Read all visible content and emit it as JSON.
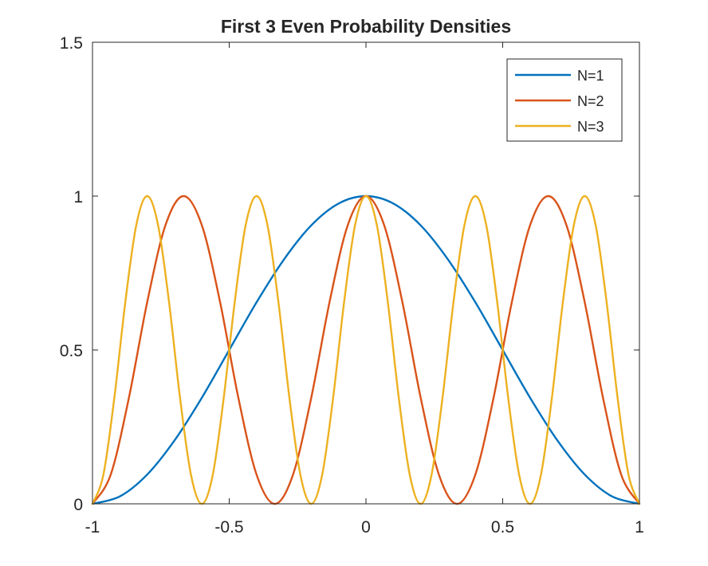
{
  "chart_data": {
    "type": "line",
    "title": "First 3 Even Probability Densities",
    "xlabel": "",
    "ylabel": "",
    "xlim": [
      -1,
      1
    ],
    "ylim": [
      0,
      1.5
    ],
    "x_ticks": [
      -1,
      -0.5,
      0,
      0.5,
      1
    ],
    "x_tick_labels": [
      "-1",
      "-0.5",
      "0",
      "0.5",
      "1"
    ],
    "y_ticks": [
      0,
      0.5,
      1,
      1.5
    ],
    "y_tick_labels": [
      "0",
      "0.5",
      "1",
      "1.5"
    ],
    "grid": false,
    "legend_position": "top-right",
    "series": [
      {
        "name": "N=1",
        "color": "#0072BD",
        "x": [
          -1.0,
          -0.9,
          -0.8,
          -0.7,
          -0.6,
          -0.5,
          -0.4,
          -0.3,
          -0.2,
          -0.1,
          0.0,
          0.1,
          0.2,
          0.3,
          0.4,
          0.5,
          0.6,
          0.7,
          0.8,
          0.9,
          1.0
        ],
        "y": [
          0.0,
          0.024,
          0.095,
          0.206,
          0.345,
          0.5,
          0.655,
          0.794,
          0.905,
          0.976,
          1.0,
          0.976,
          0.905,
          0.794,
          0.655,
          0.5,
          0.345,
          0.206,
          0.095,
          0.024,
          0.0
        ]
      },
      {
        "name": "N=2",
        "color": "#D95319",
        "x": [
          -1.0,
          -0.9333,
          -0.8667,
          -0.8,
          -0.7333,
          -0.6667,
          -0.6,
          -0.5333,
          -0.4667,
          -0.4,
          -0.3333,
          -0.2667,
          -0.2,
          -0.1333,
          -0.0667,
          0.0,
          0.0667,
          0.1333,
          0.2,
          0.2667,
          0.3333,
          0.4,
          0.4667,
          0.5333,
          0.6,
          0.6667,
          0.7333,
          0.8,
          0.8667,
          0.9333,
          1.0
        ],
        "y": [
          0.0,
          0.095,
          0.345,
          0.655,
          0.905,
          1.0,
          0.905,
          0.655,
          0.345,
          0.095,
          0.0,
          0.095,
          0.345,
          0.655,
          0.905,
          1.0,
          0.905,
          0.655,
          0.345,
          0.095,
          0.0,
          0.095,
          0.345,
          0.655,
          0.905,
          1.0,
          0.905,
          0.655,
          0.345,
          0.095,
          0.0
        ]
      },
      {
        "name": "N=3",
        "color": "#EDB120",
        "x": [
          -1.0,
          -0.96,
          -0.92,
          -0.88,
          -0.84,
          -0.8,
          -0.76,
          -0.72,
          -0.68,
          -0.64,
          -0.6,
          -0.56,
          -0.52,
          -0.48,
          -0.44,
          -0.4,
          -0.36,
          -0.32,
          -0.28,
          -0.24,
          -0.2,
          -0.16,
          -0.12,
          -0.08,
          -0.04,
          0.0,
          0.04,
          0.08,
          0.12,
          0.16,
          0.2,
          0.24,
          0.28,
          0.32,
          0.36,
          0.4,
          0.44,
          0.48,
          0.52,
          0.56,
          0.6,
          0.64,
          0.68,
          0.72,
          0.76,
          0.8,
          0.84,
          0.88,
          0.92,
          0.96,
          1.0
        ],
        "y": [
          0.0,
          0.095,
          0.345,
          0.655,
          0.905,
          1.0,
          0.905,
          0.655,
          0.345,
          0.095,
          0.0,
          0.095,
          0.345,
          0.655,
          0.905,
          1.0,
          0.905,
          0.655,
          0.345,
          0.095,
          0.0,
          0.095,
          0.345,
          0.655,
          0.905,
          1.0,
          0.905,
          0.655,
          0.345,
          0.095,
          0.0,
          0.095,
          0.345,
          0.655,
          0.905,
          1.0,
          0.905,
          0.655,
          0.345,
          0.095,
          0.0,
          0.095,
          0.345,
          0.655,
          0.905,
          1.0,
          0.905,
          0.655,
          0.345,
          0.095,
          0.0
        ]
      }
    ],
    "reference_lines": [
      {
        "orientation": "horizontal",
        "y": 0,
        "style": "dashed",
        "color": "#000000"
      }
    ]
  }
}
